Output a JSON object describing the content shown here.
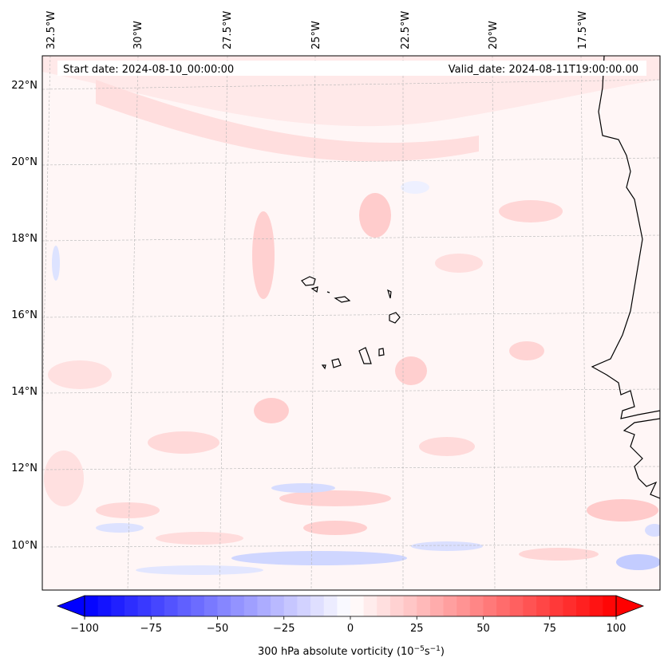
{
  "map": {
    "start_date_label": "Start date: 2024-08-10_00:00:00",
    "valid_date_label": "Valid_date: 2024-08-11T19:00:00.00",
    "lon_labels": [
      "32.5°W",
      "30°W",
      "27.5°W",
      "25°W",
      "22.5°W",
      "20°W",
      "17.5°W"
    ],
    "lat_labels": [
      "22°N",
      "20°N",
      "18°N",
      "16°N",
      "14°N",
      "12°N",
      "10°N"
    ],
    "field": "300 hPa absolute vorticity",
    "colors": {
      "negative": "#0000ff",
      "neutral": "#ffffff",
      "positive": "#ff0000",
      "coast": "#000000",
      "grid": "#b0b0b0"
    }
  },
  "colorbar": {
    "label_text": "300 hPa absolute vorticity (",
    "label_unit_base": "10",
    "label_unit_exp1": "−5",
    "label_unit_mid": "s",
    "label_unit_exp2": "−1",
    "label_close": ")",
    "ticks": [
      "−100",
      "−75",
      "−50",
      "−25",
      "0",
      "25",
      "50",
      "75",
      "100"
    ],
    "min": -100,
    "max": 100,
    "levels": 40
  }
}
